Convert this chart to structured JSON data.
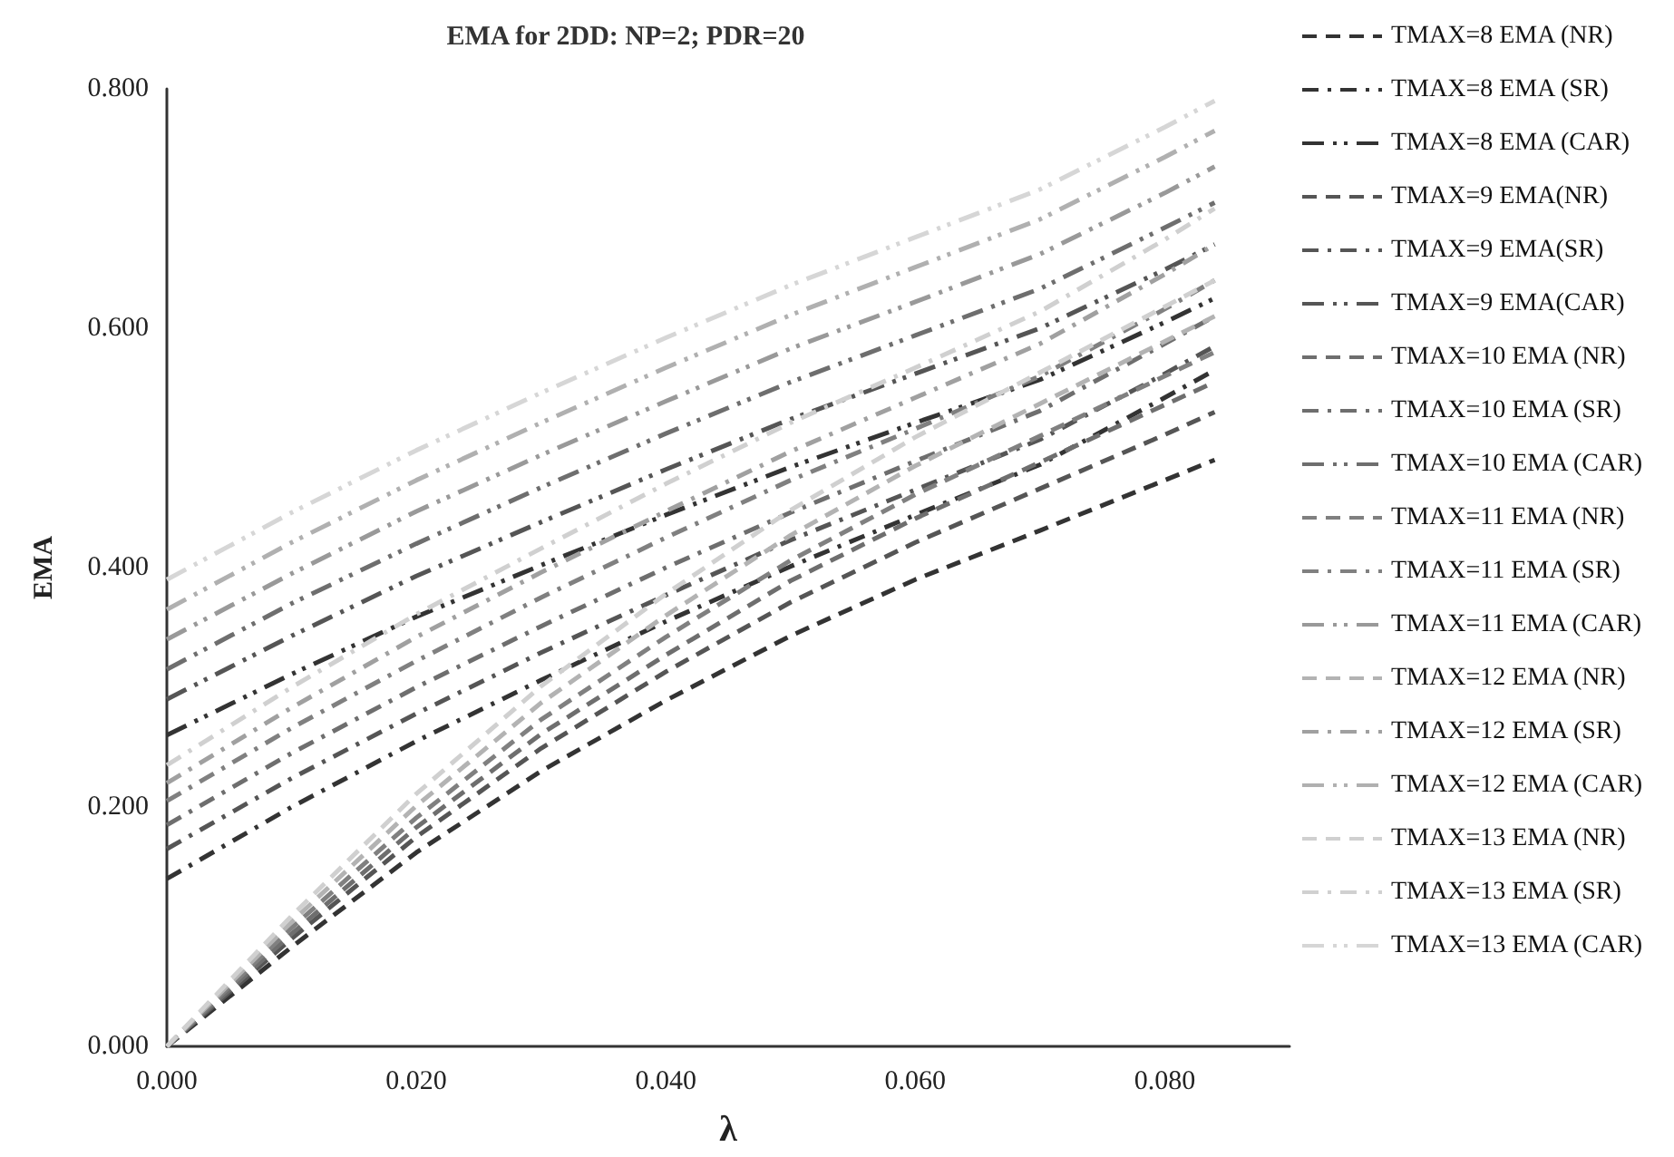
{
  "chart_data": {
    "type": "line",
    "title": "EMA for 2DD: NP=2; PDR=20",
    "xlabel": "λ",
    "ylabel": "EMA",
    "x": [
      0,
      0.01,
      0.02,
      0.03,
      0.04,
      0.05,
      0.06,
      0.07,
      0.08,
      0.084
    ],
    "xlim": [
      0,
      0.09
    ],
    "xticks": [
      {
        "value": 0,
        "label": "0.000"
      },
      {
        "value": 0.02,
        "label": "0.020"
      },
      {
        "value": 0.04,
        "label": "0.040"
      },
      {
        "value": 0.06,
        "label": "0.060"
      },
      {
        "value": 0.08,
        "label": "0.080"
      }
    ],
    "ylim": [
      0,
      0.8
    ],
    "yticks": [
      {
        "value": 0,
        "label": "0.000"
      },
      {
        "value": 0.2,
        "label": "0.200"
      },
      {
        "value": 0.4,
        "label": "0.400"
      },
      {
        "value": 0.6,
        "label": "0.600"
      },
      {
        "value": 0.8,
        "label": "0.800"
      }
    ],
    "grid": false,
    "legend": "right",
    "marker": "none",
    "series": [
      {
        "name": "TMAX=8 EMA (NR)",
        "color": "#333333",
        "line_style": "dashed",
        "values": [
          0,
          0.083,
          0.162,
          0.23,
          0.289,
          0.343,
          0.39,
          0.431,
          0.473,
          0.49
        ]
      },
      {
        "name": "TMAX=8 EMA (SR)",
        "color": "#333333",
        "line_style": "dashdot",
        "values": [
          0.14,
          0.2,
          0.255,
          0.306,
          0.355,
          0.401,
          0.444,
          0.486,
          0.542,
          0.565
        ]
      },
      {
        "name": "TMAX=8 EMA (CAR)",
        "color": "#333333",
        "line_style": "dashdotdot",
        "values": [
          0.26,
          0.311,
          0.359,
          0.402,
          0.444,
          0.484,
          0.521,
          0.557,
          0.605,
          0.625
        ]
      },
      {
        "name": "TMAX=9 EMA(NR)",
        "color": "#555555",
        "line_style": "dashed",
        "values": [
          0,
          0.09,
          0.175,
          0.249,
          0.313,
          0.371,
          0.421,
          0.466,
          0.511,
          0.53
        ]
      },
      {
        "name": "TMAX=9 EMA(SR)",
        "color": "#555555",
        "line_style": "dashdot",
        "values": [
          0.165,
          0.224,
          0.278,
          0.329,
          0.377,
          0.423,
          0.465,
          0.507,
          0.562,
          0.585
        ]
      },
      {
        "name": "TMAX=9 EMA(CAR)",
        "color": "#555555",
        "line_style": "dashdotdot",
        "values": [
          0.29,
          0.343,
          0.393,
          0.438,
          0.482,
          0.524,
          0.562,
          0.6,
          0.649,
          0.67
        ]
      },
      {
        "name": "TMAX=10 EMA (NR)",
        "color": "#6e6e6e",
        "line_style": "dashed",
        "values": [
          0,
          0.094,
          0.183,
          0.261,
          0.327,
          0.389,
          0.441,
          0.488,
          0.536,
          0.555
        ]
      },
      {
        "name": "TMAX=10 EMA (SR)",
        "color": "#6e6e6e",
        "line_style": "dashdot",
        "values": [
          0.185,
          0.245,
          0.3,
          0.351,
          0.4,
          0.446,
          0.489,
          0.531,
          0.587,
          0.61
        ]
      },
      {
        "name": "TMAX=10 EMA (CAR)",
        "color": "#6e6e6e",
        "line_style": "dashdotdot",
        "values": [
          0.315,
          0.37,
          0.42,
          0.467,
          0.512,
          0.555,
          0.594,
          0.633,
          0.684,
          0.705
        ]
      },
      {
        "name": "TMAX=11 EMA (NR)",
        "color": "#808080",
        "line_style": "dashed",
        "values": [
          0,
          0.099,
          0.191,
          0.273,
          0.342,
          0.406,
          0.461,
          0.51,
          0.56,
          0.58
        ]
      },
      {
        "name": "TMAX=11 EMA (SR)",
        "color": "#808080",
        "line_style": "dashdot",
        "values": [
          0.205,
          0.266,
          0.322,
          0.375,
          0.425,
          0.473,
          0.516,
          0.56,
          0.616,
          0.64
        ]
      },
      {
        "name": "TMAX=11 EMA (CAR)",
        "color": "#999999",
        "line_style": "dashdotdot",
        "values": [
          0.34,
          0.395,
          0.447,
          0.494,
          0.539,
          0.583,
          0.622,
          0.662,
          0.713,
          0.735
        ]
      },
      {
        "name": "TMAX=12 EMA (NR)",
        "color": "#b3b3b3",
        "line_style": "dashed",
        "values": [
          0,
          0.104,
          0.201,
          0.287,
          0.36,
          0.427,
          0.485,
          0.537,
          0.589,
          0.61
        ]
      },
      {
        "name": "TMAX=12 EMA (SR)",
        "color": "#a0a0a0",
        "line_style": "dashdot",
        "values": [
          0.22,
          0.283,
          0.342,
          0.396,
          0.447,
          0.497,
          0.542,
          0.587,
          0.645,
          0.67
        ]
      },
      {
        "name": "TMAX=12 EMA (CAR)",
        "color": "#b0b0b0",
        "line_style": "dashdotdot",
        "values": [
          0.365,
          0.421,
          0.473,
          0.521,
          0.567,
          0.611,
          0.651,
          0.691,
          0.743,
          0.765
        ]
      },
      {
        "name": "TMAX=13 EMA (NR)",
        "color": "#d0d0d0",
        "line_style": "dashed",
        "values": [
          0,
          0.109,
          0.211,
          0.301,
          0.378,
          0.448,
          0.509,
          0.563,
          0.618,
          0.64
        ]
      },
      {
        "name": "TMAX=13 EMA (SR)",
        "color": "#d0d0d0",
        "line_style": "dashdot",
        "values": [
          0.235,
          0.3,
          0.361,
          0.416,
          0.47,
          0.521,
          0.567,
          0.614,
          0.674,
          0.7
        ]
      },
      {
        "name": "TMAX=13 EMA (CAR)",
        "color": "#d6d6d6",
        "line_style": "dashdotdot",
        "values": [
          0.39,
          0.446,
          0.498,
          0.546,
          0.592,
          0.636,
          0.676,
          0.716,
          0.768,
          0.79
        ]
      }
    ]
  }
}
